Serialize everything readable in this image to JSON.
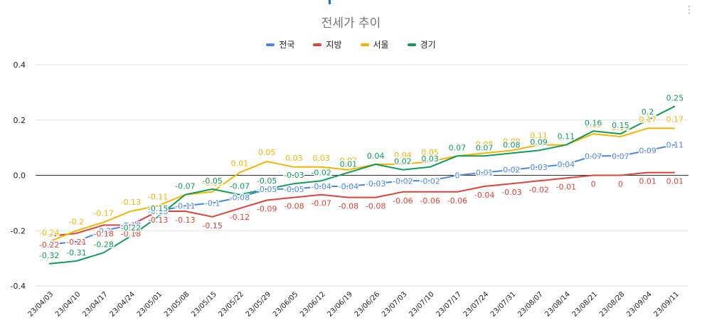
{
  "chart_data": {
    "type": "line",
    "title": "전세가 추이",
    "xlabel": "",
    "ylabel": "",
    "ylim": [
      -0.4,
      0.4
    ],
    "yticks": [
      -0.4,
      -0.2,
      0.0,
      0.2,
      0.4
    ],
    "ytick_labels": [
      "-0.4",
      "-0.2",
      "0.0",
      "0.2",
      "0.4"
    ],
    "legend_position": "top",
    "grid": true,
    "categories": [
      "23/04/03",
      "23/04/10",
      "23/04/17",
      "23/04/24",
      "23/05/01",
      "23/05/08",
      "23/05/15",
      "23/05/22",
      "23/05/29",
      "23/06/05",
      "23/06/12",
      "23/06/19",
      "23/06/26",
      "23/07/03",
      "23/07/10",
      "23/07/17",
      "23/07/24",
      "23/07/31",
      "23/08/07",
      "23/08/14",
      "23/08/21",
      "23/08/28",
      "23/09/04",
      "23/09/11"
    ],
    "series": [
      {
        "name": "전국",
        "color": "#4a86e8",
        "values": [
          -0.25,
          -0.24,
          -0.2,
          -0.18,
          -0.13,
          -0.11,
          -0.1,
          -0.08,
          -0.05,
          -0.05,
          -0.04,
          -0.04,
          -0.03,
          -0.02,
          -0.02,
          0,
          0.01,
          0.02,
          0.03,
          0.04,
          0.07,
          0.07,
          0.09,
          0.11
        ]
      },
      {
        "name": "지방",
        "color": "#db4437",
        "values": [
          -0.22,
          -0.21,
          -0.18,
          -0.18,
          -0.13,
          -0.13,
          -0.15,
          -0.12,
          -0.09,
          -0.08,
          -0.07,
          -0.08,
          -0.08,
          -0.06,
          -0.06,
          -0.06,
          -0.04,
          -0.03,
          -0.02,
          -0.01,
          0,
          0,
          0.01,
          0.01
        ]
      },
      {
        "name": "서울",
        "color": "#f4b400",
        "values": [
          -0.24,
          -0.2,
          -0.17,
          -0.13,
          -0.11,
          -0.07,
          -0.06,
          0.01,
          0.05,
          0.03,
          0.03,
          0.02,
          0.04,
          0.04,
          0.05,
          0.07,
          0.08,
          0.09,
          0.11,
          0.11,
          0.15,
          0.14,
          0.17,
          0.17
        ]
      },
      {
        "name": "경기",
        "color": "#0f9d58",
        "values": [
          -0.32,
          -0.31,
          -0.28,
          -0.22,
          -0.15,
          -0.07,
          -0.05,
          -0.07,
          -0.05,
          -0.03,
          -0.02,
          0.01,
          0.04,
          0.02,
          0.03,
          0.07,
          0.07,
          0.08,
          0.09,
          0.11,
          0.16,
          0.15,
          0.2,
          0.25
        ]
      }
    ]
  },
  "ui": {
    "menu_icon": "more-vert-icon"
  }
}
